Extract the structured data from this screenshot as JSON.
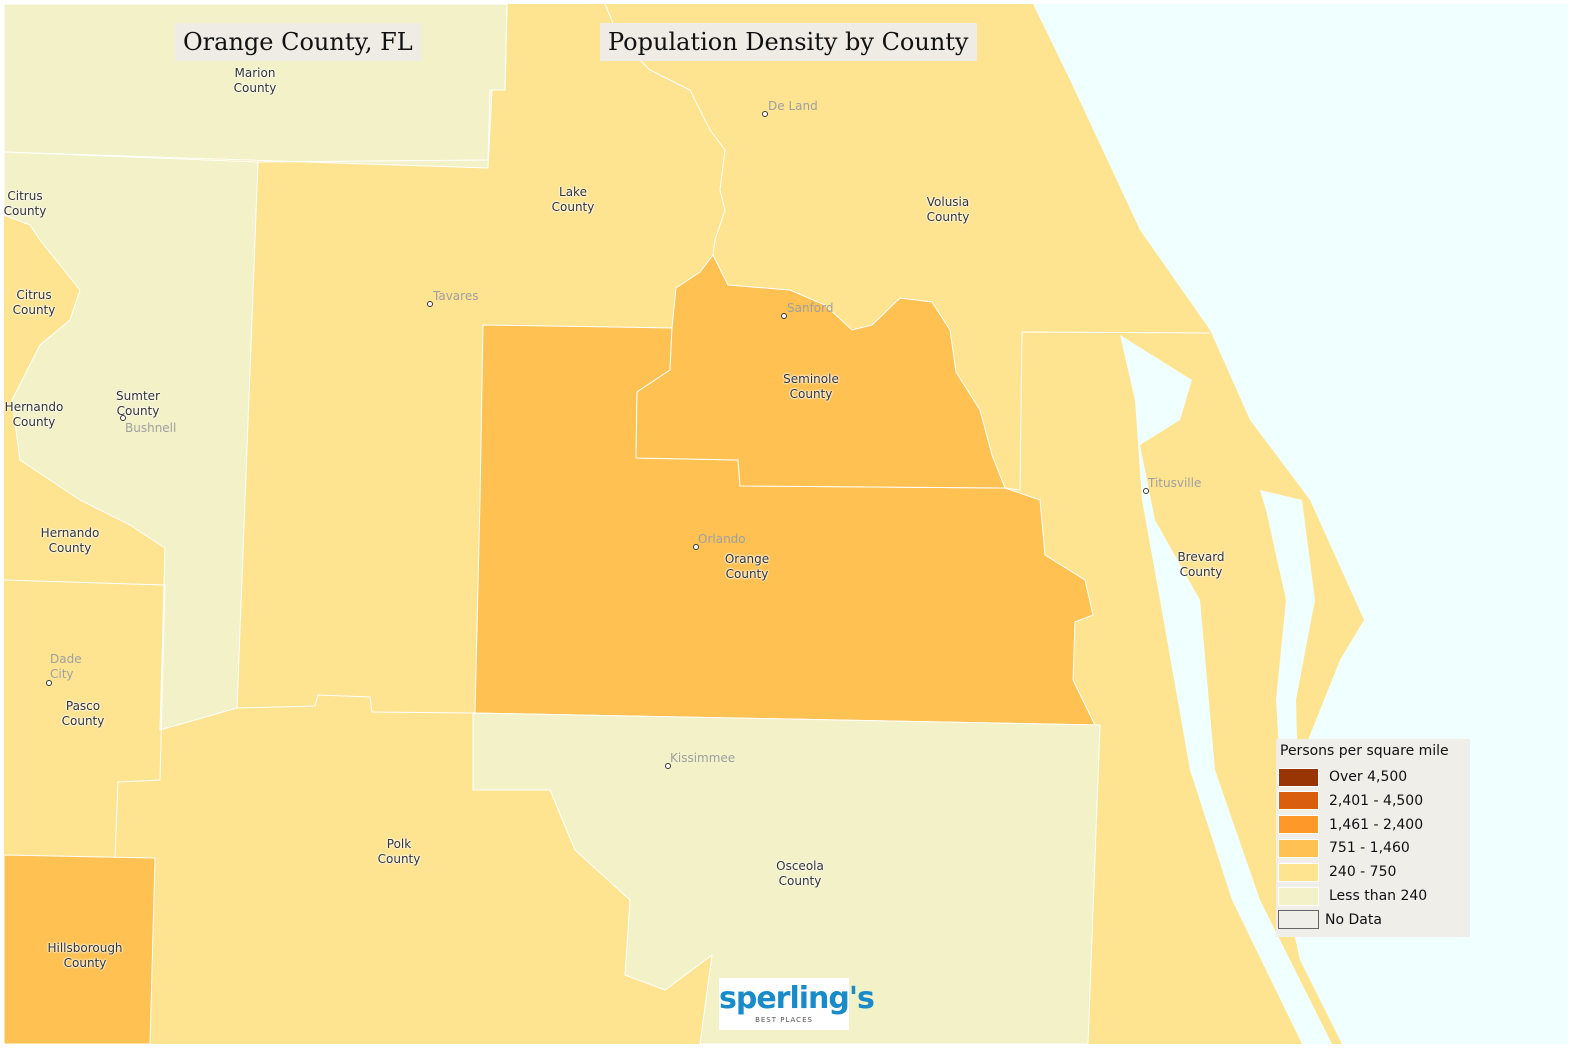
{
  "titles": {
    "left": "Orange County, FL",
    "right": "Population Density by County"
  },
  "colors": {
    "water": "#f0ffff",
    "no_data": "#f0eee9"
  },
  "counties": [
    {
      "name": "Marion\nCounty",
      "density_class": "Less than 240"
    },
    {
      "name": "Citrus\nCounty",
      "density_class": "240 - 750"
    },
    {
      "name": "Citrus\nCounty",
      "density_class": "240 - 750"
    },
    {
      "name": "Hernando\nCounty",
      "density_class": "240 - 750"
    },
    {
      "name": "Sumter\nCounty",
      "density_class": "Less than 240"
    },
    {
      "name": "Hernando\nCounty",
      "density_class": "240 - 750"
    },
    {
      "name": "Pasco\nCounty",
      "density_class": "240 - 750"
    },
    {
      "name": "Hillsborough\nCounty",
      "density_class": "751 - 1,460"
    },
    {
      "name": "Polk\nCounty",
      "density_class": "240 - 750"
    },
    {
      "name": "Lake\nCounty",
      "density_class": "240 - 750"
    },
    {
      "name": "Volusia\nCounty",
      "density_class": "240 - 750"
    },
    {
      "name": "Seminole\nCounty",
      "density_class": "751 - 1,460"
    },
    {
      "name": "Orange\nCounty",
      "density_class": "751 - 1,460"
    },
    {
      "name": "Osceola\nCounty",
      "density_class": "Less than 240"
    },
    {
      "name": "Brevard\nCounty",
      "density_class": "240 - 750"
    }
  ],
  "cities": [
    "De Land",
    "Tavares",
    "Sanford",
    "Bushnell",
    "Orlando",
    "Titusville",
    "Dade\nCity",
    "Kissimmee"
  ],
  "legend": {
    "title": "Persons per square mile",
    "items": [
      {
        "label": "Over 4,500",
        "color": "#993404"
      },
      {
        "label": "2,401 - 4,500",
        "color": "#d95f0e"
      },
      {
        "label": "1,461 - 2,400",
        "color": "#fe9929"
      },
      {
        "label": "751 - 1,460",
        "color": "#fec152"
      },
      {
        "label": "240 - 750",
        "color": "#fee391"
      },
      {
        "label": "Less than 240",
        "color": "#f2f1c8"
      },
      {
        "label": "No Data",
        "color": "#f0eee9"
      }
    ]
  },
  "logo": {
    "brand": "sperling's",
    "tagline": "BEST PLACES"
  }
}
